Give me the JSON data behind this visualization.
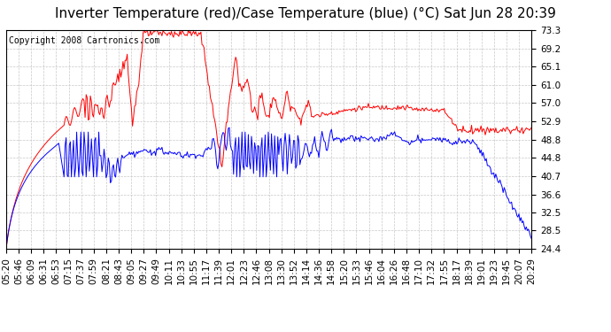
{
  "title": "Inverter Temperature (red)/Case Temperature (blue) (°C) Sat Jun 28 20:39",
  "copyright": "Copyright 2008 Cartronics.com",
  "background_color": "#ffffff",
  "plot_bg_color": "#ffffff",
  "grid_color": "#c8c8c8",
  "y_ticks": [
    24.4,
    28.5,
    32.5,
    36.6,
    40.7,
    44.8,
    48.8,
    52.9,
    57.0,
    61.0,
    65.1,
    69.2,
    73.3
  ],
  "x_labels": [
    "05:20",
    "05:46",
    "06:09",
    "06:31",
    "06:53",
    "07:15",
    "07:37",
    "07:59",
    "08:21",
    "08:43",
    "09:05",
    "09:27",
    "09:49",
    "10:11",
    "10:33",
    "10:55",
    "11:17",
    "11:39",
    "12:01",
    "12:23",
    "12:46",
    "13:08",
    "13:30",
    "13:52",
    "14:14",
    "14:36",
    "14:58",
    "15:20",
    "15:33",
    "15:46",
    "16:04",
    "16:26",
    "16:48",
    "17:10",
    "17:32",
    "17:55",
    "18:17",
    "18:39",
    "19:01",
    "19:23",
    "19:45",
    "20:07",
    "20:29"
  ],
  "ylim": [
    24.4,
    73.3
  ],
  "red_color": "#ff0000",
  "blue_color": "#0000ff",
  "title_fontsize": 11,
  "tick_fontsize": 7.5,
  "copyright_fontsize": 7
}
